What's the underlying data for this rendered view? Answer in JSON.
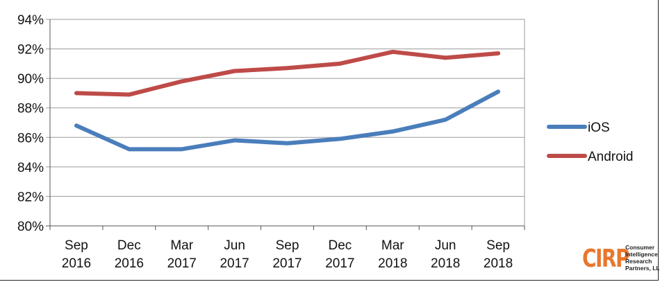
{
  "chart_data": {
    "type": "line",
    "title": "",
    "xlabel": "",
    "ylabel": "",
    "categories": [
      [
        "Sep",
        "2016"
      ],
      [
        "Dec",
        "2016"
      ],
      [
        "Mar",
        "2017"
      ],
      [
        "Jun",
        "2017"
      ],
      [
        "Sep",
        "2017"
      ],
      [
        "Dec",
        "2017"
      ],
      [
        "Mar",
        "2018"
      ],
      [
        "Jun",
        "2018"
      ],
      [
        "Sep",
        "2018"
      ]
    ],
    "ylim": [
      80,
      94
    ],
    "yticks": [
      80,
      82,
      84,
      86,
      88,
      90,
      92,
      94
    ],
    "ytick_format": "{v}%",
    "grid": true,
    "legend_position": "right",
    "series": [
      {
        "name": "iOS",
        "color": "#4a7ebb",
        "values": [
          86.8,
          85.2,
          85.2,
          85.8,
          85.6,
          85.9,
          86.4,
          87.2,
          89.1
        ]
      },
      {
        "name": "Android",
        "color": "#be4b48",
        "values": [
          89.0,
          88.9,
          89.8,
          90.5,
          90.7,
          91.0,
          91.8,
          91.4,
          91.7
        ]
      }
    ]
  },
  "logo": {
    "mark": "CIRP",
    "mark_color": "#e8772e",
    "name_lines": [
      "Consumer",
      "Intelligence",
      "Research",
      "Partners, LLC"
    ]
  }
}
